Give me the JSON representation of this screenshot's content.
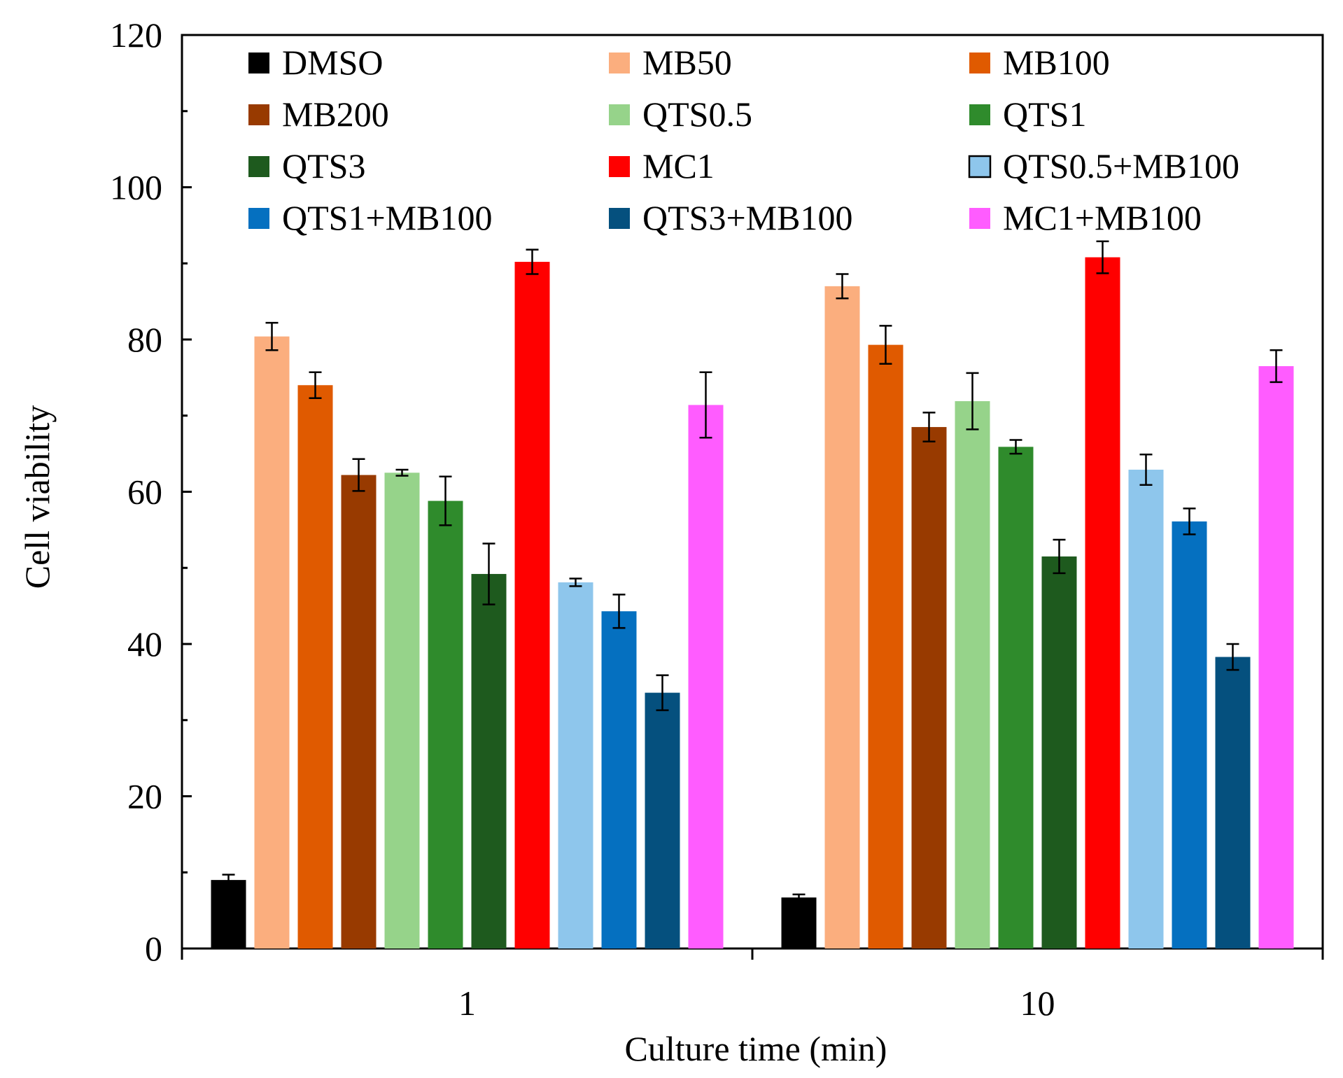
{
  "chart_data": {
    "type": "bar",
    "title": "",
    "xlabel": "Culture time (min)",
    "ylabel": "Cell viability",
    "ylim": [
      0,
      120
    ],
    "yticks": [
      0,
      20,
      40,
      60,
      80,
      100,
      120
    ],
    "grid": false,
    "legend_position": "top",
    "categories": [
      "1",
      "10"
    ],
    "series": [
      {
        "name": "DMSO",
        "color": "#000000",
        "values": [
          9.0,
          6.7
        ],
        "errors": [
          0.7,
          0.4
        ]
      },
      {
        "name": "MB50",
        "color": "#FBAE7E",
        "values": [
          80.4,
          87.0
        ],
        "errors": [
          1.8,
          1.6
        ]
      },
      {
        "name": "MB100",
        "color": "#E05A00",
        "values": [
          74.0,
          79.3
        ],
        "errors": [
          1.7,
          2.5
        ]
      },
      {
        "name": "MB200",
        "color": "#983A00",
        "values": [
          62.2,
          68.5
        ],
        "errors": [
          2.1,
          1.9
        ]
      },
      {
        "name": "QTS0.5",
        "color": "#96D38A",
        "values": [
          62.5,
          71.9
        ],
        "errors": [
          0.4,
          3.7
        ]
      },
      {
        "name": "QTS1",
        "color": "#2F8B2C",
        "values": [
          58.8,
          65.9
        ],
        "errors": [
          3.2,
          0.9
        ]
      },
      {
        "name": "QTS3",
        "color": "#1E5A1E",
        "values": [
          49.2,
          51.5
        ],
        "errors": [
          4.0,
          2.2
        ]
      },
      {
        "name": "MC1",
        "color": "#FF0000",
        "values": [
          90.2,
          90.8
        ],
        "errors": [
          1.6,
          2.1
        ]
      },
      {
        "name": "QTS0.5+MB100",
        "color": "#8EC6EC",
        "values": [
          48.1,
          62.9
        ],
        "errors": [
          0.5,
          2.0
        ]
      },
      {
        "name": "QTS1+MB100",
        "color": "#0570C0",
        "values": [
          44.3,
          56.1
        ],
        "errors": [
          2.2,
          1.7
        ]
      },
      {
        "name": "QTS3+MB100",
        "color": "#05507E",
        "values": [
          33.6,
          38.3
        ],
        "errors": [
          2.3,
          1.7
        ]
      },
      {
        "name": "MC1+MB100",
        "color": "#FF5CFF",
        "values": [
          71.4,
          76.5
        ],
        "errors": [
          4.3,
          2.1
        ]
      }
    ]
  }
}
